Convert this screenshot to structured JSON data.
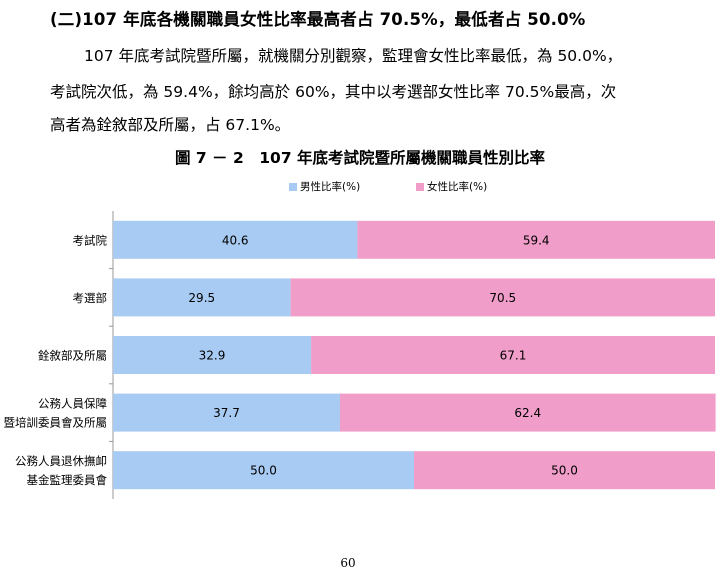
{
  "heading": "(二)107 年底各機關職員女性比率最高者占 70.5%，最低者占 50.0%",
  "paragraph": {
    "line1": "107 年底考試院暨所屬，就機關分別觀察，監理會女性比率最低，為 50.0%，",
    "line2": "考試院次低，為 59.4%，餘均高於 60%，其中以考選部女性比率 70.5%最高，次",
    "line3": "高者為銓敘部及所屬，占 67.1%。"
  },
  "figure_title": "圖 7 － 2　107 年底考試院暨所屬機關職員性別比率",
  "page_number": "60",
  "chart_data": {
    "type": "bar",
    "orientation": "horizontal",
    "stacked": true,
    "title": "圖 7 － 2　107 年底考試院暨所屬機關職員性別比率",
    "categories": [
      [
        "考試院"
      ],
      [
        "考選部"
      ],
      [
        "銓敘部及所屬"
      ],
      [
        "公務人員保障",
        "暨培訓委員會及所屬"
      ],
      [
        "公務人員退休撫卹",
        "基金監理委員會"
      ]
    ],
    "series": [
      {
        "name": "男性比率(%)",
        "color": "#a8cbf3",
        "values": [
          40.6,
          29.5,
          32.9,
          37.7,
          50.0
        ],
        "labels": [
          "40.6",
          "29.5",
          "32.9",
          "37.7",
          "50.0"
        ]
      },
      {
        "name": "女性比率(%)",
        "color": "#f09ec9",
        "values": [
          59.4,
          70.5,
          67.1,
          62.4,
          50.0
        ],
        "labels": [
          "59.4",
          "70.5",
          "67.1",
          "62.4",
          "50.0"
        ]
      }
    ],
    "xlim": [
      0,
      100
    ],
    "grid": false,
    "legend": "top"
  }
}
